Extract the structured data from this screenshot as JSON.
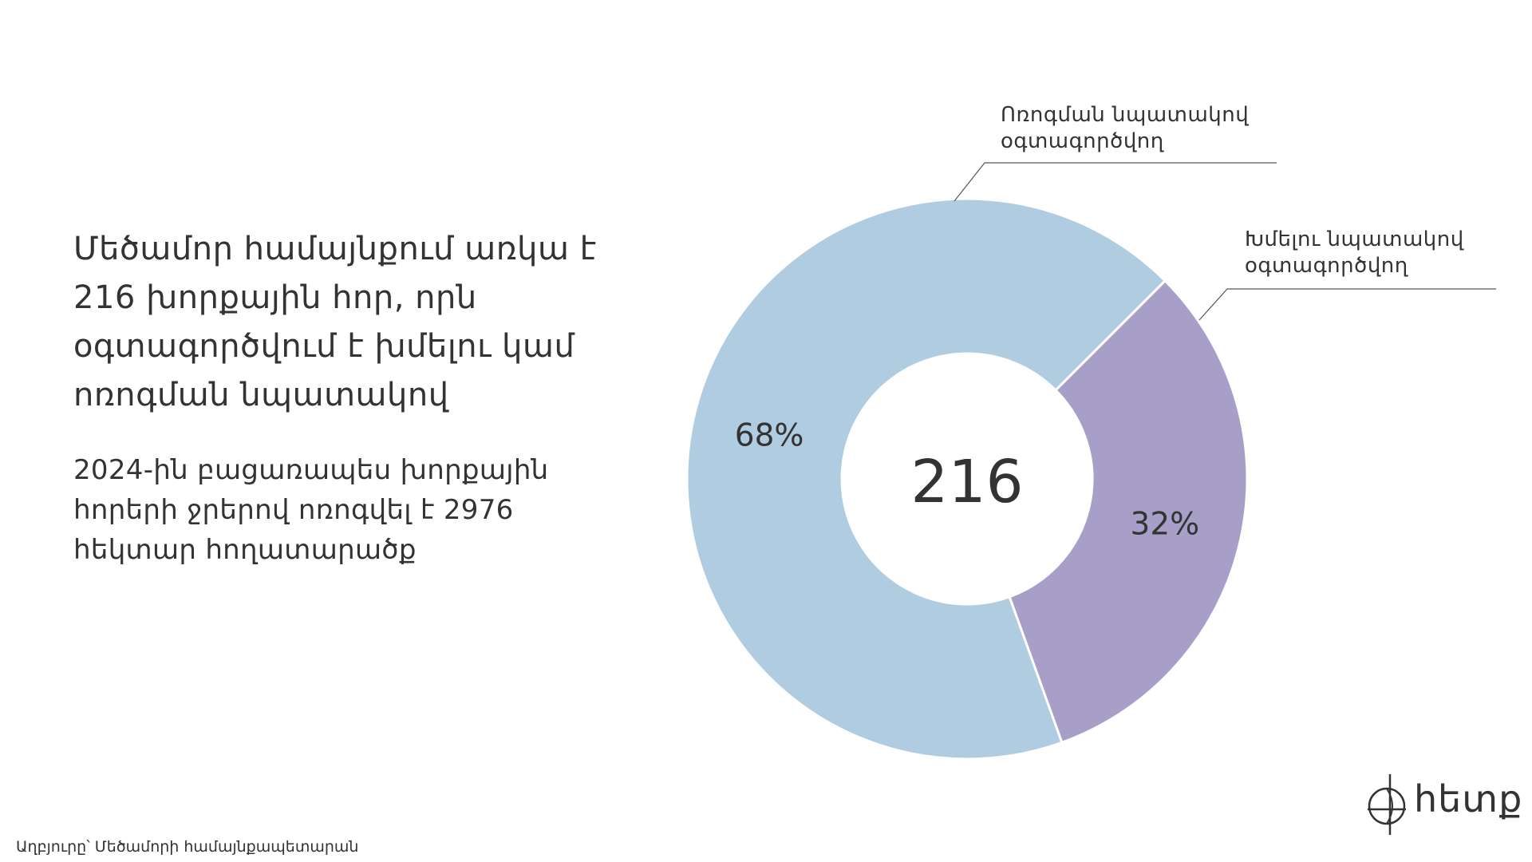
{
  "headline": "Մեծամոր համայնքում առկա է 216 խորքային հոր, որն օգտագործվում է խմելու կամ ոռոգման նպատակով",
  "subtext": "2024-ին բացառապես խորքային հորերի ջրերով ոռոգվել է 2976 հեկտար հողատարածք",
  "source": "Աղբյուրը՝ Մեծամորի համայնքապետարան",
  "logo": {
    "text": "հետք",
    "icon": "compass-cross-icon"
  },
  "chart_data": {
    "type": "pie",
    "variant": "donut",
    "center_label": "216",
    "slices": [
      {
        "label": "Ոռոգման նպատակով օգտագործվող",
        "label_lines": [
          "Ոռոգման նպատակով",
          "օգտագործվող"
        ],
        "value": 68,
        "display": "68%",
        "color": "#b0cce1"
      },
      {
        "label": "Խմելու նպատակով օգտագործվող",
        "label_lines": [
          "Խմելու նպատակով",
          "օգտագործվող"
        ],
        "value": 32,
        "display": "32%",
        "color": "#a89fc8"
      }
    ]
  }
}
